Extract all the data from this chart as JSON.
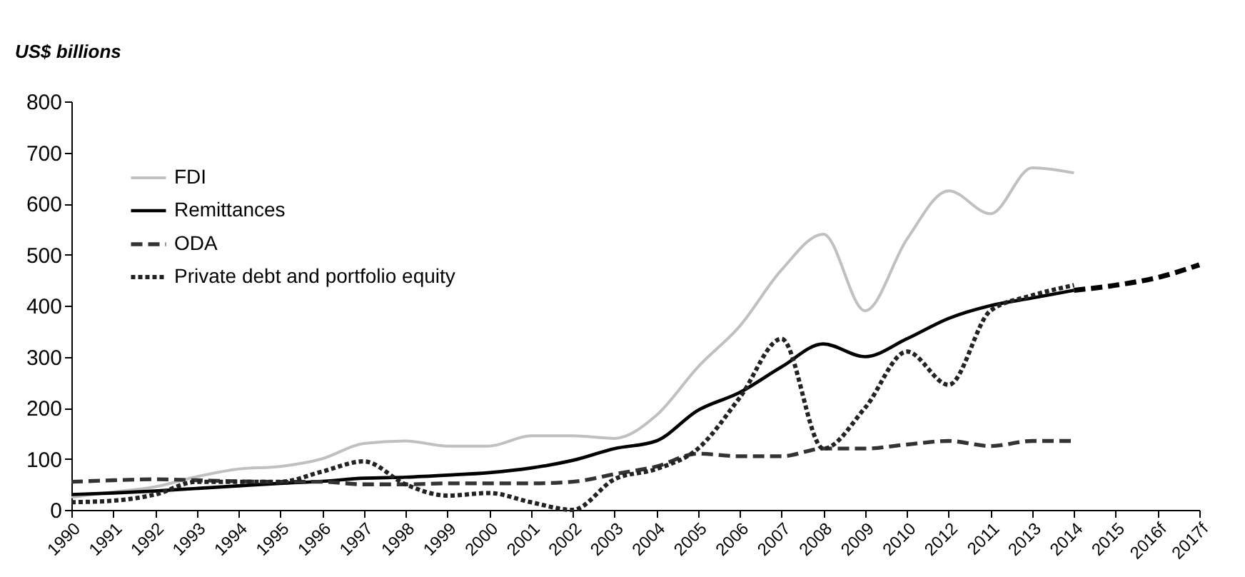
{
  "chart_data": {
    "type": "line",
    "ylabel": "US$ billions",
    "categories": [
      "1990",
      "1991",
      "1992",
      "1993",
      "1994",
      "1995",
      "1996",
      "1997",
      "1998",
      "1999",
      "2000",
      "2001",
      "2002",
      "2003",
      "2004",
      "2005",
      "2006",
      "2007",
      "2008",
      "2009",
      "2010",
      "2012",
      "2011",
      "2013",
      "2014",
      "2015",
      "2016f",
      "2017f"
    ],
    "ylim": [
      0,
      800
    ],
    "yticks": [
      0,
      100,
      200,
      300,
      400,
      500,
      600,
      700,
      800
    ],
    "legend": "top left",
    "grid": false,
    "series": [
      {
        "name": "FDI",
        "color": "#c0c0c0",
        "line_style": "solid",
        "values": [
          25,
          35,
          45,
          65,
          80,
          85,
          100,
          130,
          135,
          125,
          125,
          145,
          145,
          140,
          185,
          280,
          360,
          470,
          540,
          390,
          530,
          625,
          580,
          670,
          660,
          null,
          null,
          null
        ]
      },
      {
        "name": "Remittances",
        "color": "#000000",
        "line_style": "solid",
        "values": [
          30,
          33,
          37,
          42,
          47,
          52,
          56,
          62,
          64,
          68,
          73,
          82,
          97,
          120,
          135,
          195,
          230,
          280,
          325,
          300,
          335,
          375,
          400,
          415,
          430,
          null,
          null,
          null
        ]
      },
      {
        "name": "ODA",
        "color": "#333333",
        "line_style": "dashed",
        "values": [
          55,
          58,
          60,
          58,
          56,
          55,
          55,
          50,
          50,
          52,
          52,
          52,
          55,
          70,
          85,
          110,
          105,
          105,
          120,
          120,
          128,
          135,
          125,
          135,
          135,
          null,
          null,
          null
        ]
      },
      {
        "name": "Private debt and portfolio equity",
        "color": "#222222",
        "line_style": "dotted",
        "values": [
          15,
          18,
          30,
          55,
          55,
          55,
          75,
          95,
          50,
          28,
          33,
          15,
          0,
          60,
          80,
          120,
          220,
          335,
          120,
          200,
          310,
          245,
          390,
          420,
          440,
          null,
          null,
          null
        ]
      },
      {
        "color": "#000000",
        "line_style": "dashed",
        "values": [
          null,
          null,
          null,
          null,
          null,
          null,
          null,
          null,
          null,
          null,
          null,
          null,
          null,
          null,
          null,
          null,
          null,
          null,
          null,
          null,
          null,
          null,
          null,
          null,
          430,
          440,
          455,
          480
        ]
      }
    ]
  }
}
